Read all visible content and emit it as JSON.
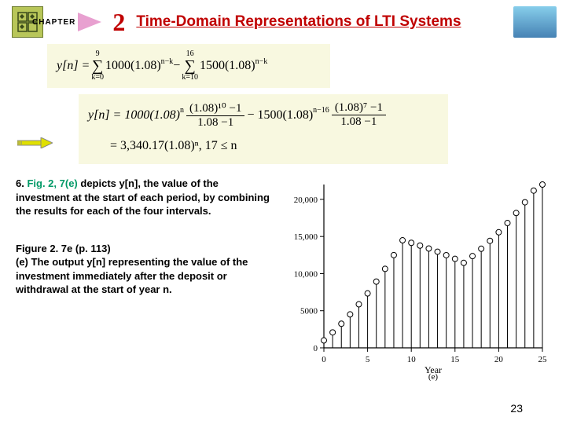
{
  "header": {
    "chapter_label": "CHAPTER",
    "chapter_number": "2",
    "title": "Time-Domain Representations of LTI Systems"
  },
  "equations": {
    "eq1": {
      "lhs": "y[n] =",
      "sum1_top": "9",
      "sum1_bot": "k=0",
      "sum1_body": "1000(1.08)",
      "sum1_exp": "n−k",
      "minus": " − ",
      "sum2_top": "16",
      "sum2_bot": "k=10",
      "sum2_body": "1500(1.08)",
      "sum2_exp": "n−k"
    },
    "eq2": {
      "line1_lhs": "y[n] = 1000(1.08)",
      "line1_exp1": "n",
      "line1_frac1_num": "(1.08)¹⁰ −1",
      "line1_frac1_den": "1.08 −1",
      "line1_mid": " − 1500(1.08)",
      "line1_exp2": "n−16",
      "line1_frac2_num": "(1.08)⁷ −1",
      "line1_frac2_den": "1.08 −1",
      "line2": "= 3,340.17(1.08)ⁿ,   17 ≤ n"
    }
  },
  "body": {
    "item6_prefix": "6. ",
    "item6_figref": "Fig. 2, 7(e)",
    "item6_rest": " depicts y[n], the value of the investment at the start of each period, by combining the results for each of the four intervals.",
    "fig_title": "Figure 2. 7e  (p. 113)",
    "fig_caption": "(e) The output y[n] representing the value of the investment immediately after the deposit or withdrawal at the start of year n."
  },
  "chart": {
    "type": "stem",
    "x_label": "Year",
    "sub_label": "(e)",
    "x_ticks": [
      0,
      5,
      10,
      15,
      20,
      25
    ],
    "y_ticks": [
      0,
      5000,
      10000,
      15000,
      20000
    ],
    "y_tick_labels": [
      "0",
      "5000",
      "10,000",
      "15,000",
      "20,000"
    ],
    "xlim": [
      0,
      25
    ],
    "ylim": [
      0,
      22000
    ],
    "data_x": [
      0,
      1,
      2,
      3,
      4,
      5,
      6,
      7,
      8,
      9,
      10,
      11,
      12,
      13,
      14,
      15,
      16,
      17,
      18,
      19,
      20,
      21,
      22,
      23,
      24,
      25
    ],
    "data_y": [
      1000,
      2080,
      3246,
      4506,
      5867,
      7336,
      8923,
      10637,
      12488,
      14487,
      14146,
      13777,
      13380,
      12950,
      12486,
      11985,
      11444,
      12359,
      13348,
      14416,
      15570,
      16815,
      18160,
      19613,
      21182,
      22877
    ],
    "stem_color": "#000000",
    "marker_color": "#ffffff",
    "marker_edge": "#000000",
    "marker_size": 3.5,
    "background": "#ffffff",
    "axis_color": "#000000",
    "font_size": 11
  },
  "page_number": "23"
}
